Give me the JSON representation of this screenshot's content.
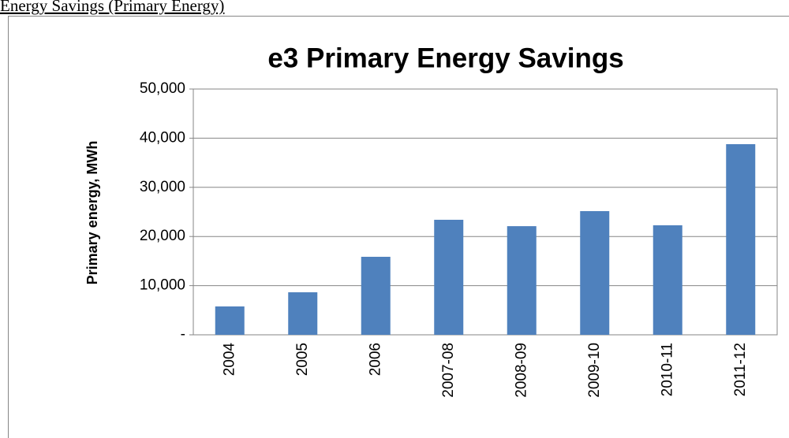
{
  "page_heading": "Energy Savings (Primary Energy)",
  "chart_data": {
    "type": "bar",
    "title": "e3 Primary Energy Savings",
    "y_label": "Primary energy, MWh",
    "categories": [
      "2004",
      "2005",
      "2006",
      "2007-08",
      "2008-09",
      "2009-10",
      "2010-11",
      "2011-12"
    ],
    "values": [
      5770,
      8650,
      15870,
      23400,
      22100,
      25160,
      22280,
      38780
    ],
    "color": "#4f81bd",
    "ylim": [
      0,
      50000
    ],
    "yticks": [
      {
        "value": 0,
        "label": "-"
      },
      {
        "value": 10000,
        "label": "10,000"
      },
      {
        "value": 20000,
        "label": "20,000"
      },
      {
        "value": 30000,
        "label": "30,000"
      },
      {
        "value": 40000,
        "label": "40,000"
      },
      {
        "value": 50000,
        "label": "50,000"
      }
    ],
    "grid": true
  }
}
